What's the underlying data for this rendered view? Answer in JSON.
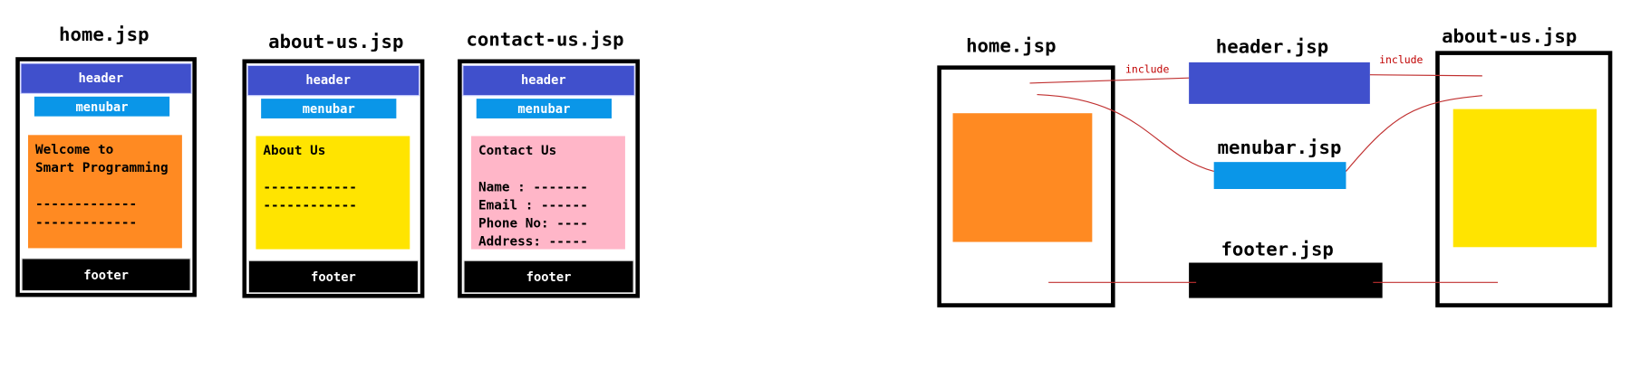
{
  "pages": [
    {
      "title": "home.jsp",
      "header": "header",
      "menubar": "menubar",
      "content": [
        "Welcome to",
        "Smart Programming",
        "",
        "-------------",
        "-------------"
      ],
      "footer": "footer"
    },
    {
      "title": "about-us.jsp",
      "header": "header",
      "menubar": "menubar",
      "content": [
        "About Us",
        "",
        "------------",
        "------------"
      ],
      "footer": "footer"
    },
    {
      "title": "contact-us.jsp",
      "header": "header",
      "menubar": "menubar",
      "content": [
        "Contact Us",
        "",
        "Name : -------",
        "Email : ------",
        "Phone No: ----",
        "Address: -----"
      ],
      "footer": "footer"
    }
  ],
  "diagram": {
    "home": "home.jsp",
    "header": "header.jsp",
    "menubar": "menubar.jsp",
    "footer": "footer.jsp",
    "about": "about-us.jsp",
    "include_left": "include",
    "include_right": "include"
  }
}
